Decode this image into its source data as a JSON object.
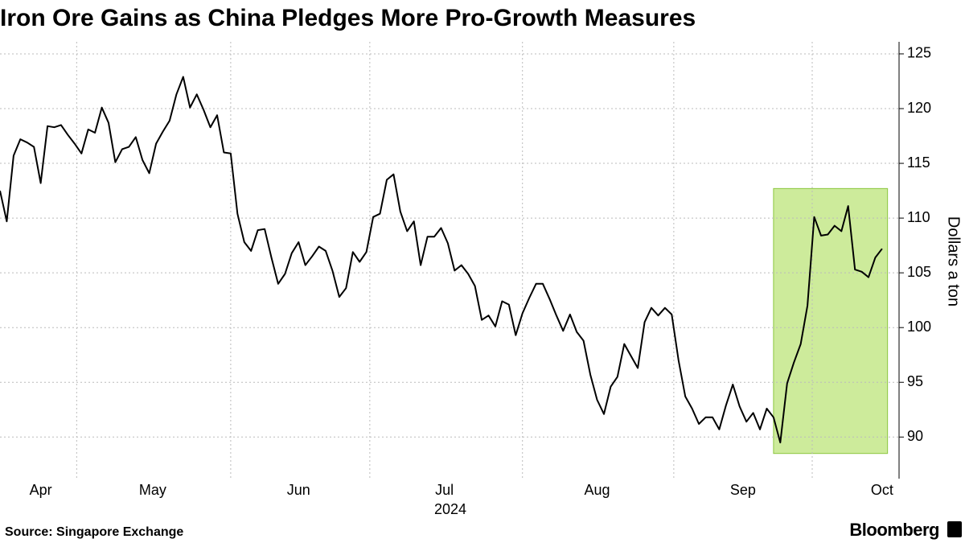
{
  "chart_data": {
    "type": "line",
    "title": "Iron Ore Gains as China Pledges More Pro-Growth Measures",
    "y_label": "Dollars a ton",
    "year_label": "2024",
    "source": "Source: Singapore Exchange",
    "brand": "Bloomberg",
    "color": "#000000",
    "values": [
      112.5,
      109.7,
      115.7,
      117.2,
      116.9,
      116.5,
      113.2,
      118.4,
      118.3,
      118.5,
      117.6,
      116.8,
      115.9,
      118.1,
      117.8,
      120.1,
      118.7,
      115.1,
      116.3,
      116.5,
      117.4,
      115.3,
      114.1,
      116.8,
      117.9,
      118.9,
      121.3,
      122.9,
      120.1,
      121.3,
      119.9,
      118.3,
      119.4,
      116.0,
      115.9,
      110.4,
      107.8,
      107.0,
      108.9,
      109.0,
      106.4,
      104.0,
      104.9,
      106.8,
      107.8,
      105.7,
      106.5,
      107.4,
      107.0,
      105.2,
      102.8,
      103.6,
      106.9,
      106.0,
      106.9,
      110.1,
      110.4,
      113.5,
      114.0,
      110.6,
      108.8,
      109.7,
      105.7,
      108.3,
      108.3,
      109.1,
      107.7,
      105.2,
      105.7,
      104.9,
      103.8,
      100.7,
      101.1,
      100.1,
      102.4,
      102.1,
      99.3,
      101.3,
      102.7,
      104.0,
      104.0,
      102.6,
      101.1,
      99.7,
      101.2,
      99.6,
      98.8,
      95.7,
      93.4,
      92.1,
      94.6,
      95.5,
      98.5,
      97.4,
      96.3,
      100.5,
      101.8,
      101.1,
      101.8,
      101.2,
      97.0,
      93.7,
      92.6,
      91.2,
      91.8,
      91.8,
      90.7,
      92.9,
      94.8,
      92.8,
      91.4,
      92.2,
      90.7,
      92.6,
      91.8,
      89.5,
      94.9,
      96.8,
      98.5,
      102.0,
      110.1,
      108.4,
      108.5,
      109.3,
      108.8,
      111.1,
      105.3,
      105.1,
      104.6,
      106.4,
      107.2
    ],
    "xlim": [
      0,
      132.5
    ],
    "xticks": [
      {
        "value": 6,
        "label": "Apr"
      },
      {
        "value": 22.5,
        "label": "May"
      },
      {
        "value": 44,
        "label": "Jun"
      },
      {
        "value": 65.5,
        "label": "Jul"
      },
      {
        "value": 88,
        "label": "Aug"
      },
      {
        "value": 109.5,
        "label": "Sep"
      },
      {
        "value": 130,
        "label": "Oct"
      }
    ],
    "xgrid": [
      11.3,
      34,
      54.5,
      77,
      99.3,
      119.7
    ],
    "ylim": [
      86.2,
      126.1
    ],
    "yticks": [
      90,
      95,
      100,
      105,
      110,
      115,
      120,
      125
    ],
    "grid": true,
    "highlight": {
      "x": [
        114,
        130.8
      ],
      "y": [
        88.5,
        112.7
      ],
      "color": "#cdeb9b",
      "edge": "#8cc63f"
    }
  }
}
